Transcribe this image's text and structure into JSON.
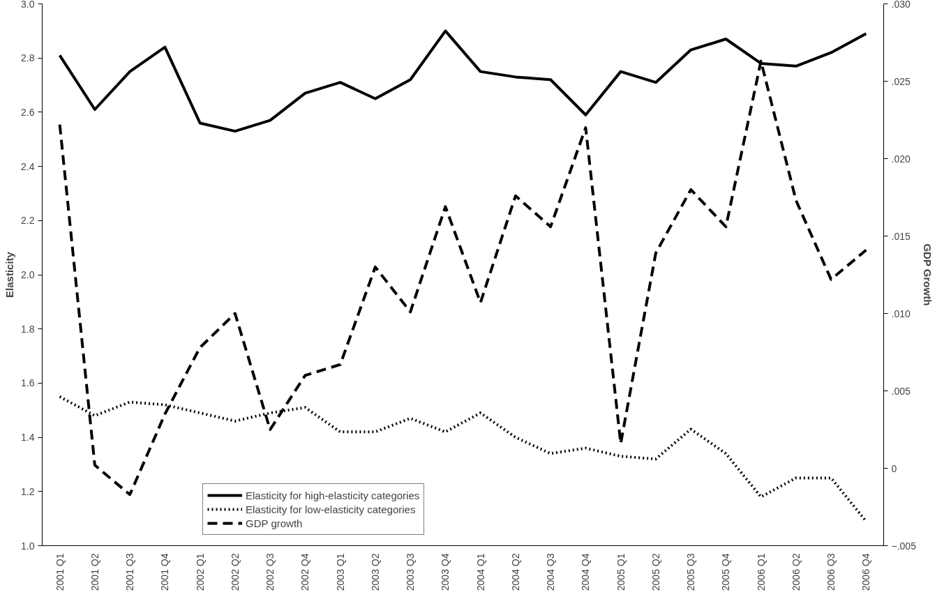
{
  "chart_data": {
    "type": "line",
    "ylabel": "Elasticity",
    "y2label": "GDP Growth",
    "categories": [
      "2001 Q1",
      "2001 Q2",
      "2001 Q3",
      "2001 Q4",
      "2002 Q1",
      "2002 Q2",
      "2002 Q3",
      "2002 Q4",
      "2003 Q1",
      "2003 Q2",
      "2003 Q3",
      "2003 Q4",
      "2004 Q1",
      "2004 Q2",
      "2004 Q3",
      "2004 Q4",
      "2005 Q1",
      "2005 Q2",
      "2005 Q3",
      "2005 Q4",
      "2006 Q1",
      "2006 Q2",
      "2006 Q3",
      "2006 Q4"
    ],
    "series": [
      {
        "name": "Elasticity for high-elasticity categories",
        "color": "#000000",
        "line_style": "solid",
        "values": [
          2.81,
          2.61,
          2.75,
          2.84,
          2.56,
          2.53,
          2.57,
          2.67,
          2.71,
          2.65,
          2.72,
          2.9,
          2.75,
          2.73,
          2.72,
          2.59,
          2.75,
          2.71,
          2.83,
          2.87,
          2.78,
          2.77,
          2.82,
          2.89
        ]
      },
      {
        "name": "Elasticity for low-elasticity categories",
        "color": "#000000",
        "line_style": "dotted",
        "values": [
          1.55,
          1.48,
          1.53,
          1.52,
          1.49,
          1.46,
          1.49,
          1.51,
          1.42,
          1.42,
          1.47,
          1.42,
          1.49,
          1.4,
          1.34,
          1.36,
          1.33,
          1.32,
          1.43,
          1.34,
          1.18,
          1.25,
          1.25,
          1.09
        ]
      },
      {
        "name": "GDP growth",
        "color": "#000000",
        "line_style": "dashed",
        "axis": "y2",
        "values": [
          0.0222,
          0.0002,
          -0.0017,
          0.0035,
          0.0078,
          0.01,
          0.0025,
          0.006,
          0.0067,
          0.013,
          0.0101,
          0.0169,
          0.0107,
          0.0176,
          0.0156,
          0.022,
          0.0016,
          0.0139,
          0.018,
          0.0156,
          0.0263,
          0.0173,
          0.0122,
          0.0141
        ]
      }
    ],
    "ylim": [
      1.0,
      3.0
    ],
    "yticks": [
      {
        "value": 1.0,
        "label": "1.0"
      },
      1.2,
      1.4,
      1.6,
      1.8,
      {
        "value": 2.0,
        "label": "2.0"
      },
      2.2,
      2.4,
      2.6,
      2.8,
      {
        "value": 3.0,
        "label": "3.0"
      }
    ],
    "y2lim": [
      -0.005,
      0.03
    ],
    "y2ticks": [
      {
        "value": -0.005,
        "label": "−.005"
      },
      0,
      {
        "value": 0.005,
        "label": ".005"
      },
      {
        "value": 0.01,
        "label": ".010"
      },
      {
        "value": 0.015,
        "label": ".015"
      },
      {
        "value": 0.02,
        "label": ".020"
      },
      {
        "value": 0.025,
        "label": ".025"
      },
      {
        "value": 0.03,
        "label": ".030"
      }
    ],
    "grid": false,
    "legend": "bottom left"
  }
}
